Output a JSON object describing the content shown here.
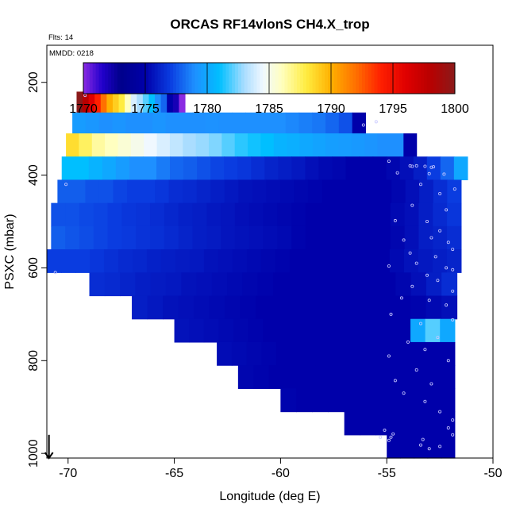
{
  "chart_data": {
    "type": "heatmap",
    "title": "ORCAS RF14vlonS CH4.X_trop",
    "flights_note": "Flts: 14",
    "date_note": "MMDD: 0218",
    "xlabel": "Longitude (deg E)",
    "ylabel": "PSXC (mbar)",
    "xlim": [
      -71,
      -50
    ],
    "ylim": [
      1010,
      120
    ],
    "x_ticks": [
      -70,
      -65,
      -60,
      -55,
      -50
    ],
    "x_tick_labels": [
      "-70",
      "-65",
      "-60",
      "-55",
      "-50"
    ],
    "y_ticks": [
      200,
      400,
      600,
      800,
      1000
    ],
    "y_tick_labels": [
      "200",
      "400",
      "600",
      "800",
      "1000"
    ],
    "colorbar": {
      "min": 1770,
      "max": 1800,
      "ticks": [
        1770,
        1775,
        1780,
        1785,
        1790,
        1795,
        1800
      ],
      "tick_labels": [
        "1770",
        "1775",
        "1780",
        "1785",
        "1790",
        "1795",
        "1800"
      ],
      "stops": [
        [
          1770,
          "#8a2be2"
        ],
        [
          1771.5,
          "#2200cc"
        ],
        [
          1773,
          "#00008b"
        ],
        [
          1775,
          "#0000aa"
        ],
        [
          1777,
          "#0a3ce0"
        ],
        [
          1779,
          "#1e90ff"
        ],
        [
          1781,
          "#00bfff"
        ],
        [
          1783,
          "#aaddff"
        ],
        [
          1784.5,
          "#f0f8ff"
        ],
        [
          1786,
          "#ffffc0"
        ],
        [
          1788,
          "#ffec40"
        ],
        [
          1790,
          "#ffb000"
        ],
        [
          1792,
          "#ff7000"
        ],
        [
          1794,
          "#ff2000"
        ],
        [
          1796,
          "#e00000"
        ],
        [
          1798,
          "#b80000"
        ],
        [
          1800,
          "#8b1a1a"
        ]
      ]
    },
    "rows": [
      {
        "p": [
          220,
          265
        ],
        "x": [
          -69.6,
          -64.5
        ],
        "v": [
          1800,
          1798,
          1796,
          1794,
          1792,
          1790,
          1789,
          1788,
          1786,
          1784,
          1783,
          1782,
          1781,
          1779,
          1778,
          1775,
          1772,
          1770
        ]
      },
      {
        "p": [
          265,
          310
        ],
        "x": [
          -69.8,
          -56
        ],
        "v": [
          1779.5,
          1779.3,
          1779,
          1779.2,
          1779,
          1779,
          1779.2,
          1779,
          1779,
          1779,
          1779.1,
          1779,
          1779,
          1779,
          1779,
          1779,
          1778.8,
          1778.6,
          1778.4,
          1778,
          1777.5,
          1775
        ]
      },
      {
        "p": [
          310,
          360
        ],
        "x": [
          -70.1,
          -53.6
        ],
        "v": [
          1788.5,
          1787.5,
          1786.5,
          1786,
          1785.5,
          1785,
          1784.5,
          1784,
          1783.5,
          1783,
          1782.8,
          1782.5,
          1782,
          1781.5,
          1781.2,
          1781,
          1780.5,
          1780.3,
          1780,
          1779.8,
          1779.6,
          1779.5,
          1779.4,
          1779.2,
          1779,
          1779,
          1775
        ]
      },
      {
        "p": [
          360,
          410
        ],
        "x": [
          -70.3,
          -51.2
        ],
        "v": [
          1781,
          1781,
          1780.5,
          1780,
          1779.5,
          1779,
          1779,
          1778.5,
          1778,
          1777.8,
          1777.5,
          1777.2,
          1777,
          1776.8,
          1776.5,
          1776.2,
          1776,
          1775.8,
          1775.5,
          1775.3,
          1775.2,
          1775,
          1775,
          1775,
          1775.2,
          1775.5,
          1776,
          1777,
          1778,
          1780
        ]
      },
      {
        "p": [
          410,
          460
        ],
        "x": [
          -70.5,
          -51.5
        ],
        "v": [
          1777.8,
          1777.8,
          1777.5,
          1777.5,
          1777.2,
          1777,
          1777,
          1776.8,
          1776.5,
          1776.4,
          1776.2,
          1776,
          1775.8,
          1775.6,
          1775.5,
          1775.4,
          1775.3,
          1775.2,
          1775.1,
          1775,
          1775,
          1775,
          1775,
          1775,
          1775.2,
          1775.5,
          1776,
          1776.5,
          1777
        ]
      },
      {
        "p": [
          460,
          510
        ],
        "x": [
          -70.8,
          -51.5
        ],
        "v": [
          1777.5,
          1777.5,
          1777.3,
          1777.2,
          1777,
          1776.8,
          1776.7,
          1776.5,
          1776.3,
          1776.1,
          1776,
          1775.8,
          1775.7,
          1775.5,
          1775.4,
          1775.3,
          1775.2,
          1775.1,
          1775,
          1775,
          1775,
          1775,
          1775,
          1775,
          1775.3,
          1775.5,
          1776,
          1776.4,
          1776.8
        ]
      },
      {
        "p": [
          510,
          560
        ],
        "x": [
          -70.8,
          -51.5
        ],
        "v": [
          1777.8,
          1777.6,
          1777.4,
          1777.2,
          1777,
          1776.9,
          1776.7,
          1776.6,
          1776.4,
          1776.2,
          1776,
          1775.9,
          1775.7,
          1775.6,
          1775.5,
          1775.4,
          1775.3,
          1775.1,
          1775,
          1775,
          1775,
          1775,
          1775,
          1775,
          1775.2,
          1775.5,
          1776,
          1776.2,
          1776.5
        ]
      },
      {
        "p": [
          560,
          610
        ],
        "x": [
          -71,
          -51.5
        ],
        "v": [
          1777,
          1777,
          1777,
          1776.8,
          1776.6,
          1776.4,
          1776.3,
          1776.1,
          1776,
          1775.9,
          1775.8,
          1775.6,
          1775.5,
          1775.4,
          1775.3,
          1775.2,
          1775.1,
          1775,
          1775,
          1775,
          1775,
          1775,
          1775,
          1775,
          1775.3,
          1775.6,
          1775.8,
          1776,
          1776.2
        ]
      },
      {
        "p": [
          610,
          660
        ],
        "x": [
          -69,
          -51.7
        ],
        "v": [
          1776.5,
          1776.4,
          1776.2,
          1776,
          1775.9,
          1775.8,
          1775.6,
          1775.5,
          1775.4,
          1775.3,
          1775.2,
          1775.1,
          1775,
          1775,
          1775,
          1775,
          1775,
          1775,
          1775,
          1775,
          1775.2,
          1775.5,
          1776,
          1776.5
        ]
      },
      {
        "p": [
          660,
          710
        ],
        "x": [
          -67,
          -51.7
        ],
        "v": [
          1776,
          1775.8,
          1775.6,
          1775.5,
          1775.4,
          1775.3,
          1775.2,
          1775.1,
          1775,
          1775,
          1775,
          1775,
          1775,
          1775,
          1775,
          1775,
          1775,
          1775,
          1775.1,
          1775.3,
          1775.5
        ]
      },
      {
        "p": [
          710,
          760
        ],
        "x": [
          -65,
          -51.8
        ],
        "v": [
          1775.6,
          1775.5,
          1775.4,
          1775.3,
          1775.2,
          1775.1,
          1775,
          1775,
          1775,
          1775,
          1775,
          1775,
          1775,
          1775,
          1775,
          1775,
          1780,
          1782,
          1780
        ]
      },
      {
        "p": [
          760,
          810
        ],
        "x": [
          -63,
          -51.8
        ],
        "v": [
          1775.4,
          1775.3,
          1775.2,
          1775.1,
          1775,
          1775,
          1775,
          1775,
          1775,
          1775,
          1775,
          1775,
          1775,
          1775,
          1775,
          1775
        ]
      },
      {
        "p": [
          810,
          860
        ],
        "x": [
          -62,
          -51.8
        ],
        "v": [
          1775.2,
          1775.1,
          1775,
          1775,
          1775,
          1775,
          1775,
          1775,
          1775,
          1775,
          1775,
          1775,
          1775,
          1775
        ]
      },
      {
        "p": [
          860,
          910
        ],
        "x": [
          -60,
          -51.8
        ],
        "v": [
          1775.1,
          1775,
          1775,
          1775,
          1775,
          1775,
          1775,
          1775,
          1775,
          1775,
          1775
        ]
      },
      {
        "p": [
          910,
          960
        ],
        "x": [
          -57,
          -51.8
        ],
        "v": [
          1775,
          1775,
          1775,
          1775,
          1775,
          1775,
          1775
        ]
      },
      {
        "p": [
          960,
          1010
        ],
        "x": [
          -55,
          -51.8
        ],
        "v": [
          1775,
          1775,
          1775,
          1775,
          1775
        ]
      }
    ],
    "points": [
      [
        -69.2,
        228
      ],
      [
        -55.5,
        285
      ],
      [
        -56.1,
        292
      ],
      [
        -54.9,
        370
      ],
      [
        -53.9,
        380
      ],
      [
        -53.8,
        381
      ],
      [
        -53.6,
        380
      ],
      [
        -53.2,
        381
      ],
      [
        -52.9,
        383
      ],
      [
        -52.8,
        382
      ],
      [
        -54.5,
        395
      ],
      [
        -53.0,
        397
      ],
      [
        -52.3,
        398
      ],
      [
        -53.4,
        420
      ],
      [
        -52.5,
        440
      ],
      [
        -51.8,
        430
      ],
      [
        -70.1,
        420
      ],
      [
        -53.8,
        465
      ],
      [
        -52.2,
        475
      ],
      [
        -54.6,
        498
      ],
      [
        -53.1,
        500
      ],
      [
        -52.5,
        520
      ],
      [
        -52.9,
        535
      ],
      [
        -52.1,
        545
      ],
      [
        -51.9,
        560
      ],
      [
        -54.2,
        540
      ],
      [
        -53.9,
        568
      ],
      [
        -52.7,
        576
      ],
      [
        -53.6,
        590
      ],
      [
        -54.9,
        596
      ],
      [
        -52.2,
        600
      ],
      [
        -51.9,
        604
      ],
      [
        -70.6,
        610
      ],
      [
        -53.1,
        616
      ],
      [
        -52.6,
        627
      ],
      [
        -53.8,
        640
      ],
      [
        -51.9,
        650
      ],
      [
        -54.3,
        665
      ],
      [
        -53.0,
        670
      ],
      [
        -52.2,
        680
      ],
      [
        -54.8,
        700
      ],
      [
        -51.9,
        712
      ],
      [
        -53.4,
        720
      ],
      [
        -54.0,
        760
      ],
      [
        -52.6,
        750
      ],
      [
        -53.2,
        776
      ],
      [
        -54.9,
        790
      ],
      [
        -52.1,
        800
      ],
      [
        -53.6,
        820
      ],
      [
        -54.6,
        843
      ],
      [
        -52.9,
        850
      ],
      [
        -54.2,
        870
      ],
      [
        -53.2,
        888
      ],
      [
        -52.5,
        910
      ],
      [
        -51.9,
        928
      ],
      [
        -55.1,
        950
      ],
      [
        -54.7,
        958
      ],
      [
        -54.8,
        965
      ],
      [
        -54.9,
        972
      ],
      [
        -53.3,
        970
      ],
      [
        -53.4,
        982
      ],
      [
        -53.0,
        990
      ],
      [
        -52.5,
        985
      ],
      [
        -52.1,
        945
      ],
      [
        -55.3,
        965
      ],
      [
        -51.9,
        960
      ]
    ],
    "arrow": {
      "lon": -70.9,
      "p_start": 960,
      "p_end": 1010
    }
  },
  "colors": {
    "frame": "#000000",
    "marker": "#c8c8ff",
    "background": "#ffffff"
  }
}
